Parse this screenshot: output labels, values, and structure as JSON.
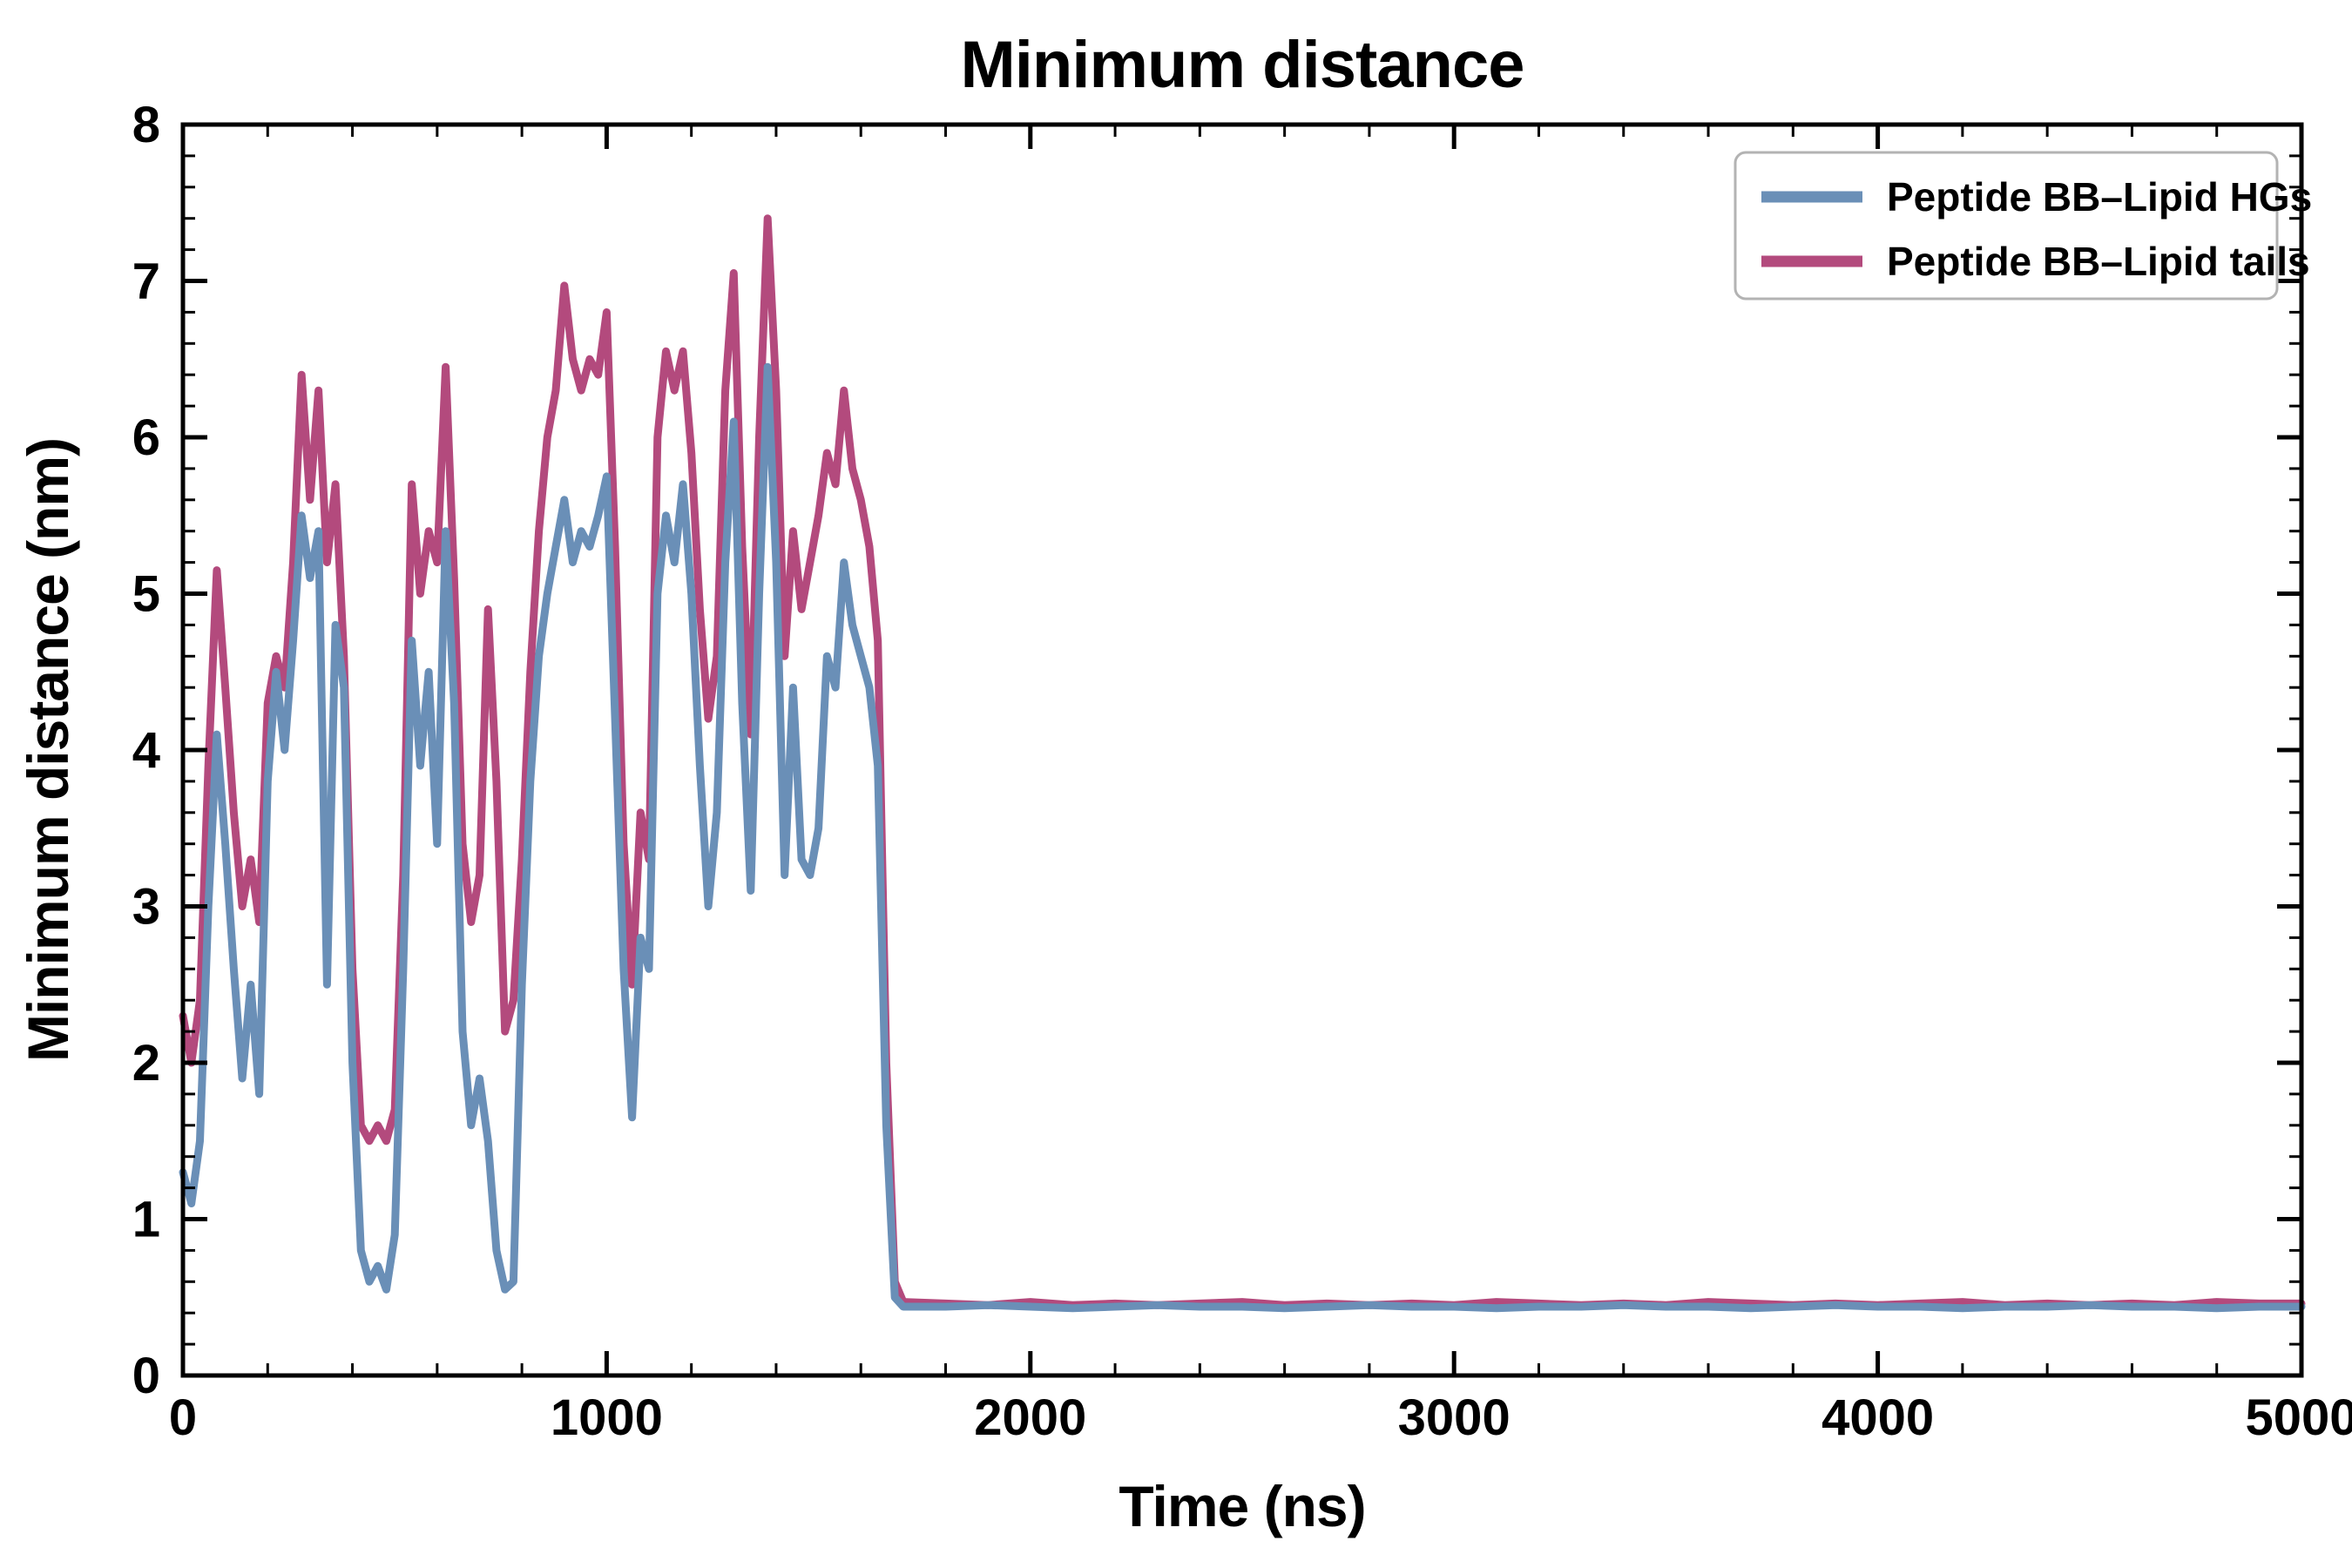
{
  "chart_data": {
    "type": "line",
    "title": "Minimum distance",
    "xlabel": "Time (ns)",
    "ylabel": "Minimum distance (nm)",
    "xlim": [
      0,
      5000
    ],
    "ylim": [
      0,
      8
    ],
    "xticks": [
      0,
      1000,
      2000,
      3000,
      4000,
      5000
    ],
    "yticks": [
      0,
      1,
      2,
      3,
      4,
      5,
      6,
      7,
      8
    ],
    "x_minor_step": 200,
    "y_minor_step": 0.2,
    "grid": false,
    "legend_position": "upper right",
    "axis_color": "#000000",
    "background": "#ffffff",
    "line_width": 9,
    "x": [
      0,
      20,
      40,
      60,
      80,
      100,
      120,
      140,
      160,
      180,
      200,
      220,
      240,
      260,
      280,
      300,
      320,
      340,
      360,
      380,
      400,
      420,
      440,
      460,
      480,
      500,
      520,
      540,
      560,
      580,
      600,
      620,
      640,
      660,
      680,
      700,
      720,
      740,
      760,
      780,
      800,
      820,
      840,
      860,
      880,
      900,
      920,
      940,
      960,
      980,
      1000,
      1020,
      1040,
      1060,
      1080,
      1100,
      1120,
      1140,
      1160,
      1180,
      1200,
      1220,
      1240,
      1260,
      1280,
      1300,
      1320,
      1340,
      1360,
      1380,
      1400,
      1420,
      1440,
      1460,
      1480,
      1500,
      1520,
      1540,
      1560,
      1580,
      1600,
      1620,
      1640,
      1660,
      1680,
      1700,
      1800,
      1900,
      2000,
      2100,
      2200,
      2300,
      2400,
      2500,
      2600,
      2700,
      2800,
      2900,
      3000,
      3100,
      3200,
      3300,
      3400,
      3500,
      3600,
      3700,
      3800,
      3900,
      4000,
      4100,
      4200,
      4300,
      4400,
      4500,
      4600,
      4700,
      4800,
      4900,
      5000
    ],
    "series": [
      {
        "name": "Peptide BB–Lipid HGs",
        "color": "#6a8fb7",
        "values": [
          1.3,
          1.1,
          1.5,
          3.0,
          4.1,
          3.4,
          2.6,
          1.9,
          2.5,
          1.8,
          3.8,
          4.5,
          4.0,
          4.7,
          5.5,
          5.1,
          5.4,
          2.5,
          4.8,
          4.4,
          2.0,
          0.8,
          0.6,
          0.7,
          0.55,
          0.9,
          2.6,
          4.7,
          3.9,
          4.5,
          3.4,
          5.4,
          4.3,
          2.2,
          1.6,
          1.9,
          1.5,
          0.8,
          0.55,
          0.6,
          2.5,
          3.8,
          4.6,
          5.0,
          5.3,
          5.6,
          5.2,
          5.4,
          5.3,
          5.5,
          5.75,
          4.2,
          2.6,
          1.65,
          2.8,
          2.6,
          5.0,
          5.5,
          5.2,
          5.7,
          5.0,
          3.9,
          3.0,
          3.6,
          5.2,
          6.1,
          4.3,
          3.1,
          5.0,
          6.45,
          5.2,
          3.2,
          4.4,
          3.3,
          3.2,
          3.5,
          4.6,
          4.4,
          5.2,
          4.8,
          4.6,
          4.4,
          3.9,
          1.6,
          0.5,
          0.44,
          0.44,
          0.45,
          0.44,
          0.43,
          0.44,
          0.45,
          0.44,
          0.44,
          0.43,
          0.44,
          0.45,
          0.44,
          0.44,
          0.43,
          0.44,
          0.44,
          0.45,
          0.44,
          0.44,
          0.43,
          0.44,
          0.45,
          0.44,
          0.44,
          0.43,
          0.44,
          0.44,
          0.45,
          0.44,
          0.44,
          0.43,
          0.44,
          0.44
        ]
      },
      {
        "name": "Peptide BB–Lipid tails",
        "color": "#b34a7d",
        "values": [
          2.3,
          2.0,
          2.4,
          3.9,
          5.15,
          4.4,
          3.6,
          3.0,
          3.3,
          2.9,
          4.3,
          4.6,
          4.4,
          5.2,
          6.4,
          5.6,
          6.3,
          5.2,
          5.7,
          4.6,
          2.6,
          1.6,
          1.5,
          1.6,
          1.5,
          1.7,
          3.2,
          5.7,
          5.0,
          5.4,
          5.2,
          6.45,
          5.1,
          3.4,
          2.9,
          3.2,
          4.9,
          3.8,
          2.2,
          2.4,
          3.3,
          4.5,
          5.4,
          6.0,
          6.3,
          6.97,
          6.5,
          6.3,
          6.5,
          6.4,
          6.8,
          5.3,
          3.4,
          2.5,
          3.6,
          3.3,
          6.0,
          6.55,
          6.3,
          6.55,
          5.9,
          4.9,
          4.2,
          4.6,
          6.3,
          7.05,
          5.3,
          4.1,
          6.0,
          7.4,
          6.3,
          4.6,
          5.4,
          4.9,
          5.2,
          5.5,
          5.9,
          5.7,
          6.3,
          5.8,
          5.6,
          5.3,
          4.7,
          2.0,
          0.6,
          0.47,
          0.46,
          0.45,
          0.47,
          0.45,
          0.46,
          0.45,
          0.46,
          0.47,
          0.45,
          0.46,
          0.45,
          0.46,
          0.45,
          0.47,
          0.46,
          0.45,
          0.46,
          0.45,
          0.47,
          0.46,
          0.45,
          0.46,
          0.45,
          0.46,
          0.47,
          0.45,
          0.46,
          0.45,
          0.46,
          0.45,
          0.47,
          0.46,
          0.46
        ]
      }
    ]
  }
}
